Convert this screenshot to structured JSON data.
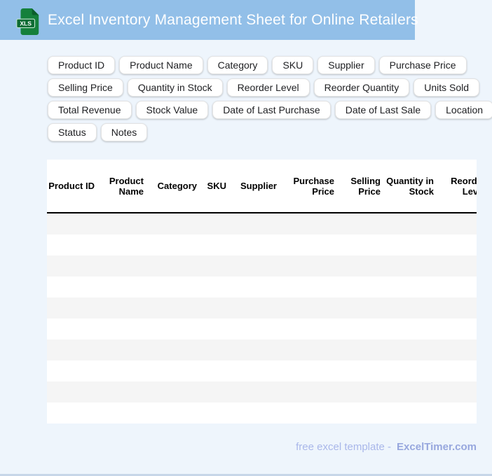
{
  "header": {
    "title": "Excel Inventory Management Sheet for Online Retailers",
    "file_badge": "XLS"
  },
  "chips": {
    "rows": [
      [
        "Product ID",
        "Product Name",
        "Category",
        "SKU",
        "Supplier",
        "Purchase Price"
      ],
      [
        "Selling Price",
        "Quantity in Stock",
        "Reorder Level",
        "Reorder Quantity",
        "Units Sold"
      ],
      [
        "Total Revenue",
        "Stock Value",
        "Date of Last Purchase",
        "Date of Last Sale",
        "Location"
      ],
      [
        "Status",
        "Notes"
      ]
    ]
  },
  "table": {
    "columns": [
      "Product ID",
      "Product Name",
      "Category",
      "SKU",
      "Supplier",
      "Purchase Price",
      "Selling Price",
      "Quantity in Stock",
      "Reorder Level"
    ],
    "empty_row_count": 10
  },
  "footer": {
    "text": "free excel template -",
    "brand": "ExcelTimer.com"
  },
  "colors": {
    "header_bg": "#92bfe8",
    "page_bg": "#eef5fc",
    "row_stripe": "#f5f5f5",
    "header_border": "#000000",
    "icon_green": "#15803c",
    "icon_green_dark": "#0b5e2c",
    "footer_text": "#a9b7ea",
    "footer_brand": "#97a7de"
  }
}
